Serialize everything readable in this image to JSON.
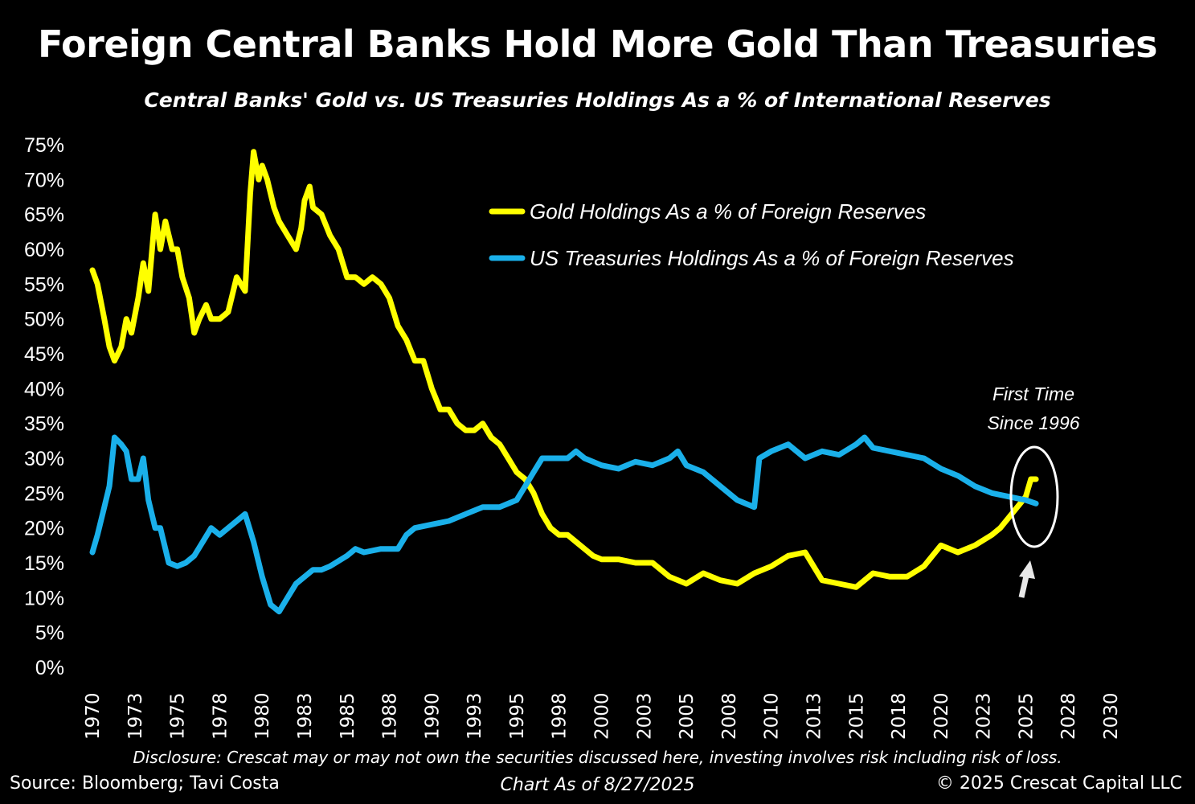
{
  "chart_data": {
    "type": "line",
    "title": "Foreign Central Banks Hold More Gold Than Treasuries",
    "subtitle": "Central Banks' Gold vs. US Treasuries Holdings As a % of International Reserves",
    "xlabel": "",
    "ylabel": "",
    "xlim": [
      1970,
      2030
    ],
    "ylim": [
      0,
      75
    ],
    "x_tick_labels": [
      "1970",
      "1973",
      "1975",
      "1978",
      "1980",
      "1983",
      "1985",
      "1988",
      "1990",
      "1993",
      "1995",
      "1998",
      "2000",
      "2003",
      "2005",
      "2008",
      "2010",
      "2013",
      "2015",
      "2018",
      "2020",
      "2023",
      "2025",
      "2028",
      "2030"
    ],
    "y_tick_labels": [
      "0%",
      "5%",
      "10%",
      "15%",
      "20%",
      "25%",
      "30%",
      "35%",
      "40%",
      "45%",
      "50%",
      "55%",
      "60%",
      "65%",
      "70%",
      "75%"
    ],
    "grid": false,
    "legend_position": "top-right",
    "series": [
      {
        "name": "Gold Holdings As a % of Foreign Reserves",
        "color": "#ffff00",
        "x": [
          1970.0,
          1970.3,
          1970.7,
          1971.0,
          1971.3,
          1971.7,
          1972.0,
          1972.3,
          1972.7,
          1973.0,
          1973.3,
          1973.7,
          1974.0,
          1974.3,
          1974.7,
          1975.0,
          1975.3,
          1975.7,
          1976.0,
          1976.3,
          1976.7,
          1977.0,
          1977.5,
          1978.0,
          1978.5,
          1979.0,
          1979.3,
          1979.5,
          1979.8,
          1980.0,
          1980.3,
          1980.7,
          1981.0,
          1981.5,
          1982.0,
          1982.3,
          1982.5,
          1982.8,
          1983.0,
          1983.5,
          1984.0,
          1984.5,
          1985.0,
          1985.5,
          1986.0,
          1986.5,
          1987.0,
          1987.5,
          1988.0,
          1988.5,
          1989.0,
          1989.5,
          1990.0,
          1990.5,
          1991.0,
          1991.5,
          1992.0,
          1992.5,
          1993.0,
          1993.5,
          1994.0,
          1994.5,
          1995.0,
          1995.5,
          1996.0,
          1996.5,
          1997.0,
          1997.5,
          1998.0,
          1998.5,
          1999.0,
          1999.5,
          2000.0,
          2001.0,
          2002.0,
          2003.0,
          2004.0,
          2005.0,
          2006.0,
          2007.0,
          2008.0,
          2009.0,
          2010.0,
          2011.0,
          2012.0,
          2013.0,
          2014.0,
          2015.0,
          2016.0,
          2017.0,
          2018.0,
          2019.0,
          2020.0,
          2021.0,
          2022.0,
          2023.0,
          2023.5,
          2024.0,
          2024.5,
          2025.0,
          2025.3,
          2025.6
        ],
        "values": [
          57,
          55,
          50,
          46,
          44,
          46,
          50,
          48,
          53,
          58,
          54,
          65,
          60,
          64,
          60,
          60,
          56,
          53,
          48,
          50,
          52,
          50,
          50,
          51,
          56,
          54,
          68,
          74,
          70,
          72,
          70,
          66,
          64,
          62,
          60,
          63,
          67,
          69,
          66,
          65,
          62,
          60,
          56,
          56,
          55,
          56,
          55,
          53,
          49,
          47,
          44,
          44,
          40,
          37,
          37,
          35,
          34,
          34,
          35,
          33,
          32,
          30,
          28,
          27,
          25,
          22,
          20,
          19,
          19,
          18,
          17,
          16,
          15.5,
          15.5,
          15,
          15,
          13,
          12,
          13.5,
          12.5,
          12,
          13.5,
          14.5,
          16,
          16.5,
          12.5,
          12,
          11.5,
          13.5,
          13,
          13,
          14.5,
          17.5,
          16.5,
          17.5,
          19,
          20,
          21.5,
          23,
          24.5,
          27,
          27
        ]
      },
      {
        "name": "US Treasuries Holdings As a % of Foreign Reserves",
        "color": "#1ab0ea",
        "x": [
          1970.0,
          1970.3,
          1970.7,
          1971.0,
          1971.3,
          1971.7,
          1972.0,
          1972.3,
          1972.7,
          1973.0,
          1973.3,
          1973.7,
          1974.0,
          1974.5,
          1975.0,
          1975.5,
          1976.0,
          1976.5,
          1977.0,
          1977.5,
          1978.0,
          1978.5,
          1979.0,
          1979.5,
          1980.0,
          1980.5,
          1981.0,
          1981.5,
          1982.0,
          1982.5,
          1983.0,
          1983.5,
          1984.0,
          1985.0,
          1985.5,
          1986.0,
          1987.0,
          1988.0,
          1988.5,
          1989.0,
          1990.0,
          1991.0,
          1992.0,
          1993.0,
          1994.0,
          1995.0,
          1995.5,
          1996.0,
          1996.5,
          1997.0,
          1998.0,
          1998.5,
          1999.0,
          2000.0,
          2001.0,
          2002.0,
          2003.0,
          2004.0,
          2004.5,
          2005.0,
          2006.0,
          2007.0,
          2008.0,
          2009.0,
          2009.3,
          2010.0,
          2011.0,
          2012.0,
          2013.0,
          2014.0,
          2015.0,
          2015.5,
          2016.0,
          2017.0,
          2018.0,
          2019.0,
          2020.0,
          2021.0,
          2022.0,
          2023.0,
          2024.0,
          2025.0,
          2025.6
        ],
        "values": [
          16.5,
          19,
          23,
          26,
          33,
          32,
          31,
          27,
          27,
          30,
          24,
          20,
          20,
          15,
          14.5,
          15,
          16,
          18,
          20,
          19,
          20,
          21,
          22,
          18,
          13,
          9,
          8,
          10,
          12,
          13,
          14,
          14,
          14.5,
          16,
          17,
          16.5,
          17,
          17,
          19,
          20,
          20.5,
          21,
          22,
          23,
          23,
          24,
          26,
          28,
          30,
          30,
          30,
          31,
          30,
          29,
          28.5,
          29.5,
          29,
          30,
          31,
          29,
          28,
          26,
          24,
          23,
          30,
          31,
          32,
          30,
          31,
          30.5,
          32,
          33,
          31.5,
          31,
          30.5,
          30,
          28.5,
          27.5,
          26,
          25,
          24.5,
          24,
          23.5
        ]
      }
    ],
    "annotations": [
      {
        "text_line1": "First Time",
        "text_line2": "Since 1996",
        "shape": "ellipse + arrow",
        "color": "#ffffff"
      }
    ]
  },
  "footer": {
    "disclosure": "Disclosure: Crescat may or may not own the securities discussed here, investing involves risk including risk of loss.",
    "source": "Source: Bloomberg; Tavi Costa",
    "as_of": "Chart As of 8/27/2025",
    "copyright": "© 2025 Crescat Capital LLC"
  }
}
